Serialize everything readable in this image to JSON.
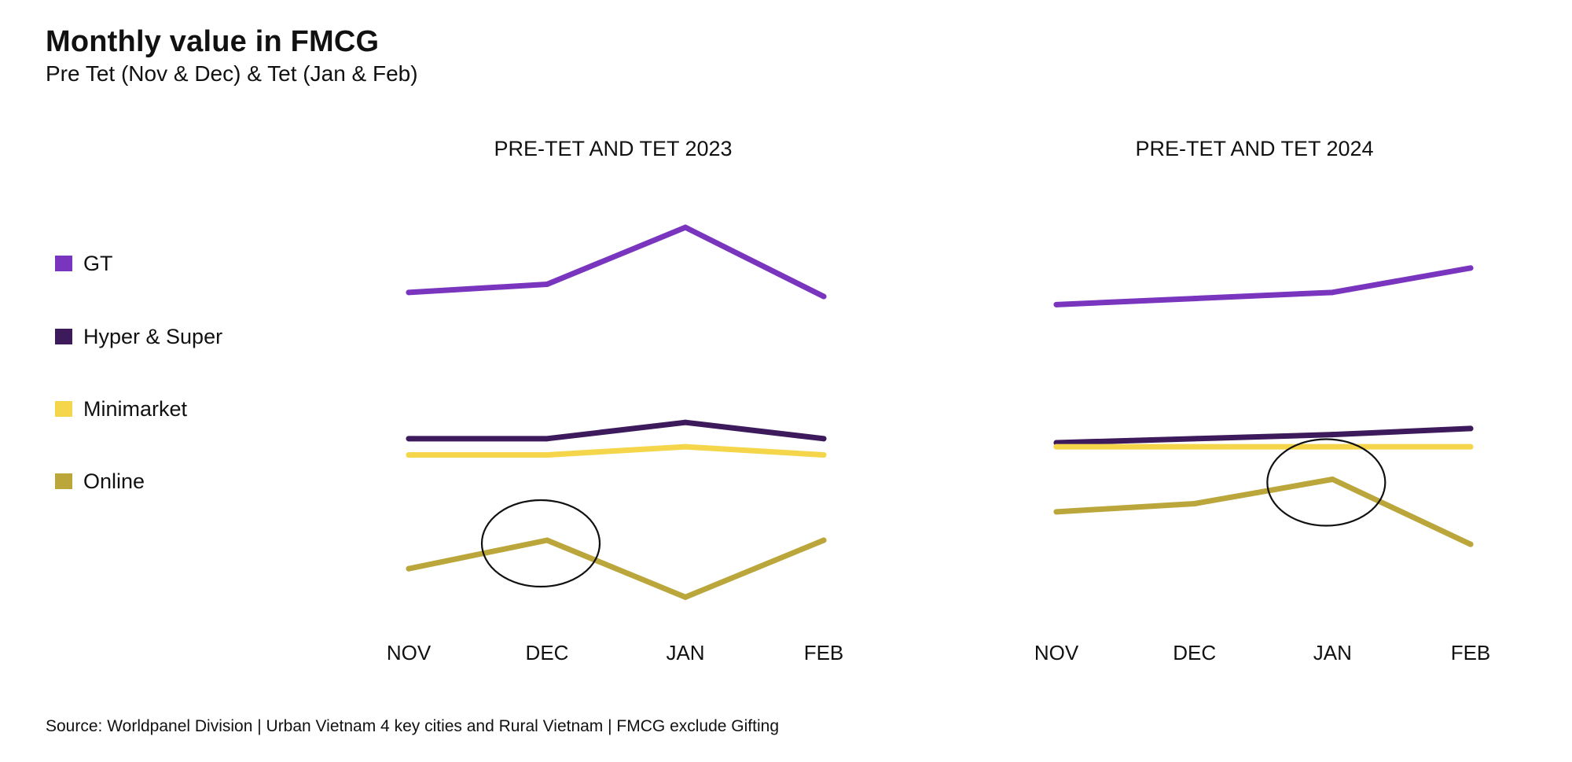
{
  "header": {
    "title": "Monthly value in FMCG",
    "subtitle": "Pre Tet  (Nov & Dec) & Tet  (Jan & Feb)"
  },
  "legend": [
    {
      "label": "GT",
      "color": "#7a35bf"
    },
    {
      "label": "Hyper & Super",
      "color": "#3d1a5c"
    },
    {
      "label": "Minimarket",
      "color": "#f5d64a"
    },
    {
      "label": "Online",
      "color": "#baa63a"
    }
  ],
  "source": "Source: Worldpanel Division | Urban Vietnam 4 key cities and Rural Vietnam | FMCG exclude Gifting",
  "chart_data": [
    {
      "type": "line",
      "title": "PRE-TET AND TET 2023",
      "categories": [
        "NOV",
        "DEC",
        "JAN",
        "FEB"
      ],
      "y_axis_shown": false,
      "grid": false,
      "legend_position": "left",
      "series": [
        {
          "name": "GT",
          "color": "#7a35bf",
          "values": [
            79,
            81,
            95,
            78
          ]
        },
        {
          "name": "Hyper & Super",
          "color": "#3d1a5c",
          "values": [
            43,
            43,
            47,
            43
          ]
        },
        {
          "name": "Minimarket",
          "color": "#f5d64a",
          "values": [
            39,
            39,
            41,
            39
          ]
        },
        {
          "name": "Online",
          "color": "#baa63a",
          "values": [
            11,
            18,
            4,
            18
          ]
        }
      ],
      "annotations": [
        {
          "shape": "circle",
          "series": "Online",
          "category": "DEC"
        }
      ]
    },
    {
      "type": "line",
      "title": "PRE-TET AND TET 2024",
      "categories": [
        "NOV",
        "DEC",
        "JAN",
        "FEB"
      ],
      "y_axis_shown": false,
      "grid": false,
      "legend_position": "left",
      "series": [
        {
          "name": "GT",
          "color": "#7a35bf",
          "values": [
            76,
            77.5,
            79,
            85
          ]
        },
        {
          "name": "Hyper & Super",
          "color": "#3d1a5c",
          "values": [
            42,
            43,
            44,
            45.5
          ]
        },
        {
          "name": "Minimarket",
          "color": "#f5d64a",
          "values": [
            41,
            41,
            41,
            41
          ]
        },
        {
          "name": "Online",
          "color": "#baa63a",
          "values": [
            25,
            27,
            33,
            17
          ]
        }
      ],
      "annotations": [
        {
          "shape": "circle",
          "series": "Online",
          "category": "JAN"
        }
      ]
    }
  ]
}
